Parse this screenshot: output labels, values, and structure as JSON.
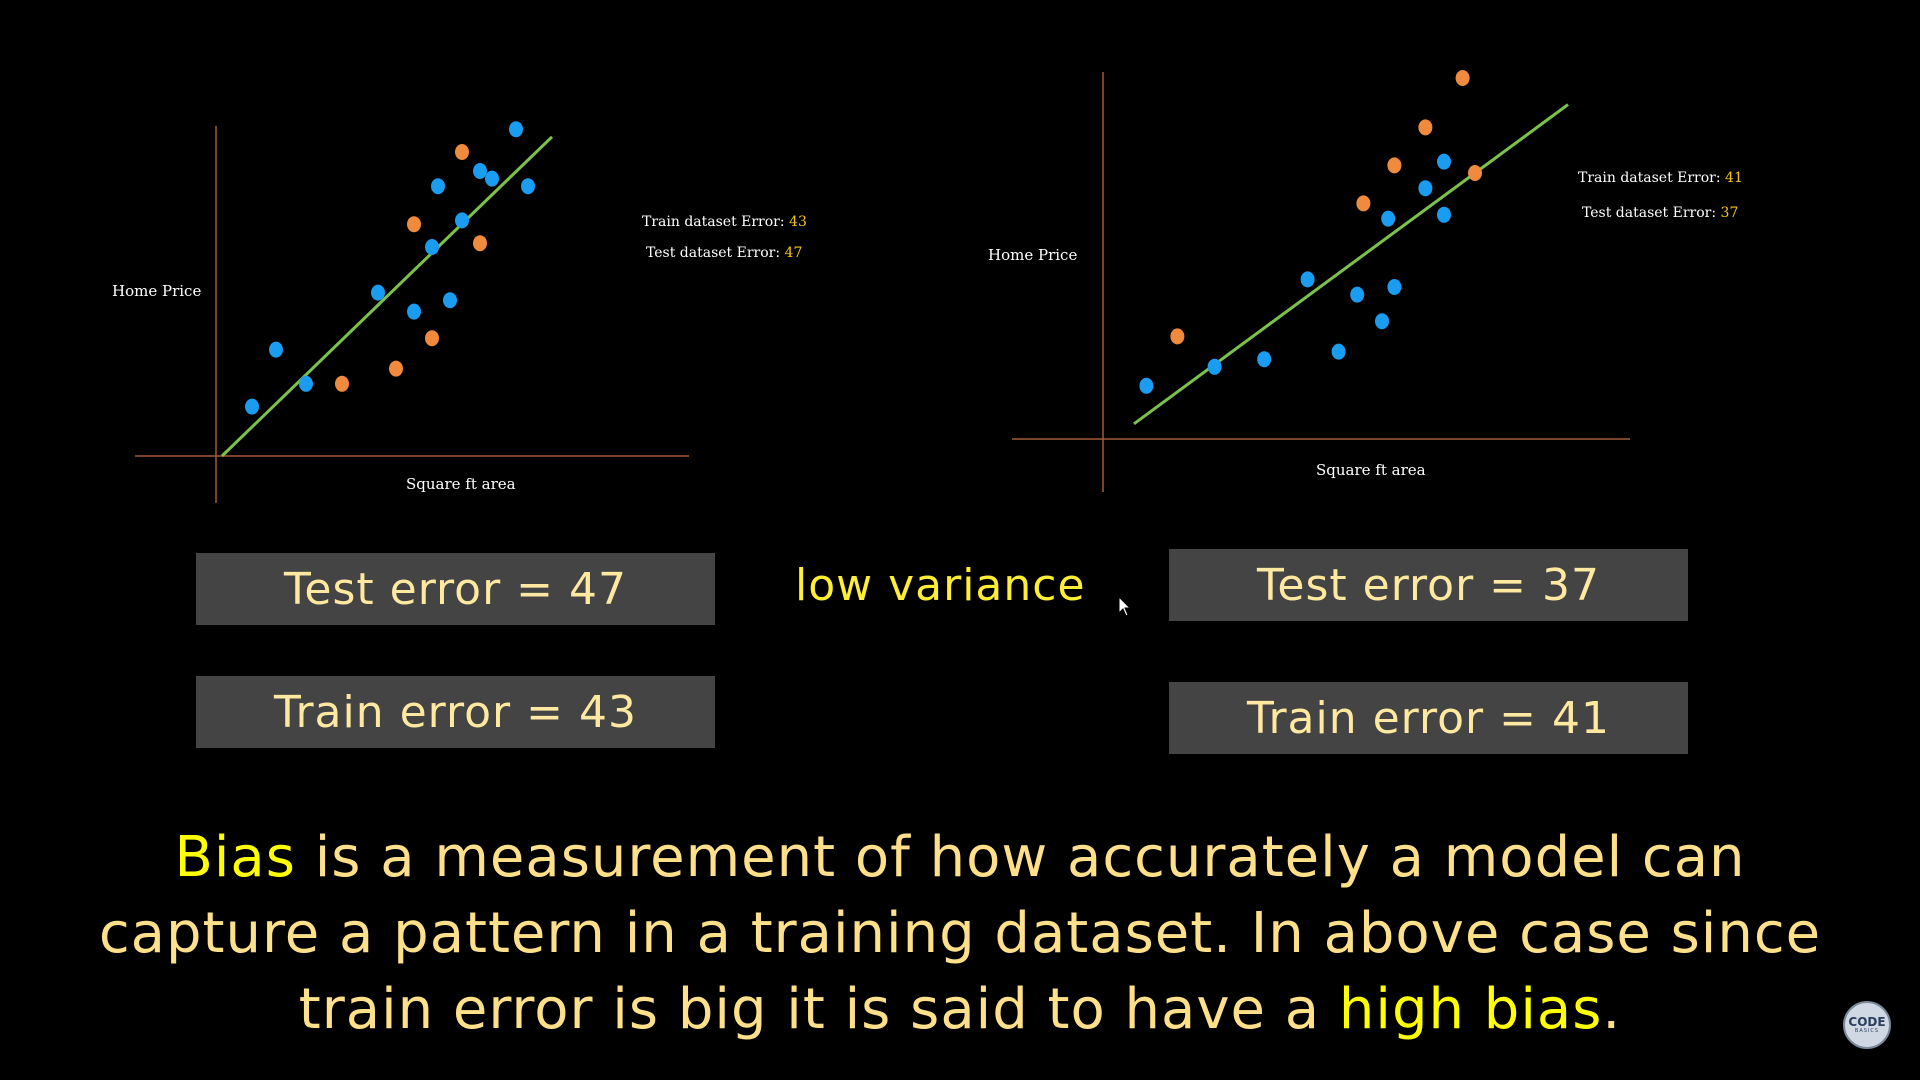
{
  "left_chart": {
    "ylabel": "Home Price",
    "xlabel": "Square ft area",
    "train_label": "Train dataset Error:",
    "train_value": "43",
    "test_label": "Test dataset Error:",
    "test_value": "47",
    "colors": {
      "train": "#1a9cf0",
      "test": "#f08a3c",
      "line": "#7cc24a",
      "axis": "#a25a35"
    },
    "chart_data": {
      "type": "scatter",
      "xlabel": "Square ft area",
      "ylabel": "Home Price",
      "series": [
        {
          "name": "",
          "color": "#1a9cf0",
          "points": [
            [
              0.06,
              0.13
            ],
            [
              0.1,
              0.28
            ],
            [
              0.15,
              0.19
            ],
            [
              0.27,
              0.43
            ],
            [
              0.33,
              0.38
            ],
            [
              0.36,
              0.55
            ],
            [
              0.37,
              0.71
            ],
            [
              0.39,
              0.41
            ],
            [
              0.41,
              0.62
            ],
            [
              0.44,
              0.75
            ],
            [
              0.46,
              0.73
            ],
            [
              0.5,
              0.86
            ],
            [
              0.52,
              0.71
            ]
          ]
        },
        {
          "name": "",
          "color": "#f08a3c",
          "points": [
            [
              0.21,
              0.19
            ],
            [
              0.3,
              0.23
            ],
            [
              0.33,
              0.61
            ],
            [
              0.36,
              0.31
            ],
            [
              0.41,
              0.8
            ],
            [
              0.44,
              0.56
            ]
          ]
        }
      ],
      "fit_line": [
        [
          0.01,
          0.0
        ],
        [
          0.56,
          0.84
        ]
      ]
    }
  },
  "right_chart": {
    "ylabel": "Home Price",
    "xlabel": "Square ft area",
    "train_label": "Train dataset Error:",
    "train_value": "41",
    "test_label": "Test dataset Error:",
    "test_value": "37",
    "chart_data": {
      "type": "scatter",
      "xlabel": "Square ft area",
      "ylabel": "Home Price",
      "series": [
        {
          "name": "",
          "color": "#1a9cf0",
          "points": [
            [
              0.07,
              0.14
            ],
            [
              0.18,
              0.19
            ],
            [
              0.26,
              0.21
            ],
            [
              0.33,
              0.42
            ],
            [
              0.38,
              0.23
            ],
            [
              0.41,
              0.38
            ],
            [
              0.45,
              0.31
            ],
            [
              0.46,
              0.58
            ],
            [
              0.47,
              0.4
            ],
            [
              0.52,
              0.66
            ],
            [
              0.55,
              0.73
            ],
            [
              0.55,
              0.59
            ]
          ]
        },
        {
          "name": "",
          "color": "#f08a3c",
          "points": [
            [
              0.12,
              0.27
            ],
            [
              0.42,
              0.62
            ],
            [
              0.47,
              0.72
            ],
            [
              0.52,
              0.82
            ],
            [
              0.58,
              0.95
            ],
            [
              0.6,
              0.7
            ]
          ]
        }
      ],
      "fit_line": [
        [
          0.05,
          0.04
        ],
        [
          0.75,
          0.88
        ]
      ]
    }
  },
  "boxes": {
    "left_test": "Test error = 47",
    "left_train": "Train error = 43",
    "right_test": "Test error = 37",
    "right_train": "Train error = 41"
  },
  "low_variance": "low variance",
  "caption": {
    "highlight1": "Bias",
    "line1_rest": " is a measurement of how accurately a model can",
    "line2": "capture a pattern in a training dataset. In above case since",
    "line3_start": "train error is big it is said to have a ",
    "highlight2": "high bias",
    "line3_end": "."
  },
  "logo": {
    "top": "CODE",
    "bottom": "BASICS"
  }
}
